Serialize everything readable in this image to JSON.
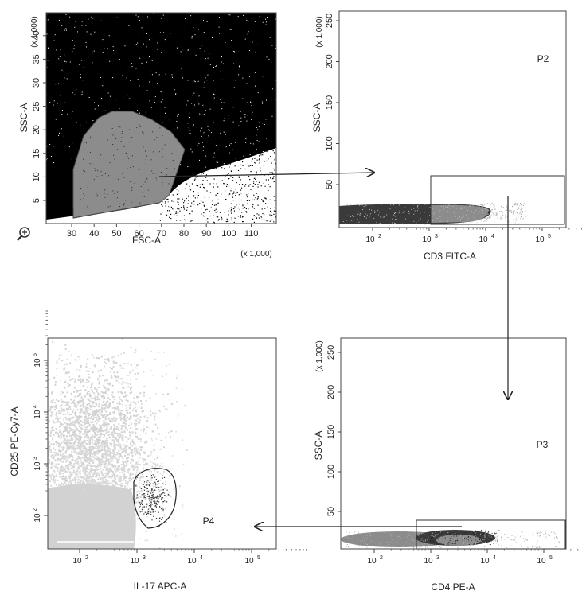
{
  "plots": {
    "p1": {
      "x_label": "FSC-A",
      "y_label": "SSC-A",
      "x_mult": "(x 1,000)",
      "y_mult": "(x 1,000)",
      "x_ticks": [
        "30",
        "40",
        "50",
        "60",
        "70",
        "80",
        "90",
        "100",
        "110"
      ],
      "y_ticks": [
        "5",
        "10",
        "15",
        "20",
        "25",
        "30",
        "35",
        "40"
      ]
    },
    "p2": {
      "x_label": "CD3 FITC-A",
      "y_label": "SSC-A",
      "y_mult": "(x 1,000)",
      "gate": "P2",
      "x_ticks": [
        "10",
        "10",
        "10",
        "10"
      ],
      "x_exps": [
        "2",
        "3",
        "4",
        "5"
      ],
      "y_ticks": [
        "50",
        "100",
        "150",
        "200",
        "250"
      ]
    },
    "p3": {
      "x_label": "CD4 PE-A",
      "y_label": "SSC-A",
      "y_mult": "(x 1,000)",
      "gate": "P3",
      "x_ticks": [
        "10",
        "10",
        "10",
        "10"
      ],
      "x_exps": [
        "2",
        "3",
        "4",
        "5"
      ],
      "y_ticks": [
        "50",
        "100",
        "150",
        "200",
        "250"
      ]
    },
    "p4": {
      "x_label": "IL-17 APC-A",
      "y_label": "CD25 PE-Cy7-A",
      "gate": "P4",
      "x_ticks": [
        "10",
        "10",
        "10",
        "10"
      ],
      "x_exps": [
        "2",
        "3",
        "4",
        "5"
      ],
      "y_ticks": [
        "10",
        "10",
        "10",
        "10"
      ],
      "y_exps": [
        "2",
        "3",
        "4",
        "5"
      ]
    }
  },
  "colors": {
    "dense": "#000000",
    "gray": "#8c8c8c",
    "light": "#d2d2d2",
    "dark": "#3a3a3a"
  },
  "icons": {
    "zoom": "magnifier-plus-icon"
  }
}
